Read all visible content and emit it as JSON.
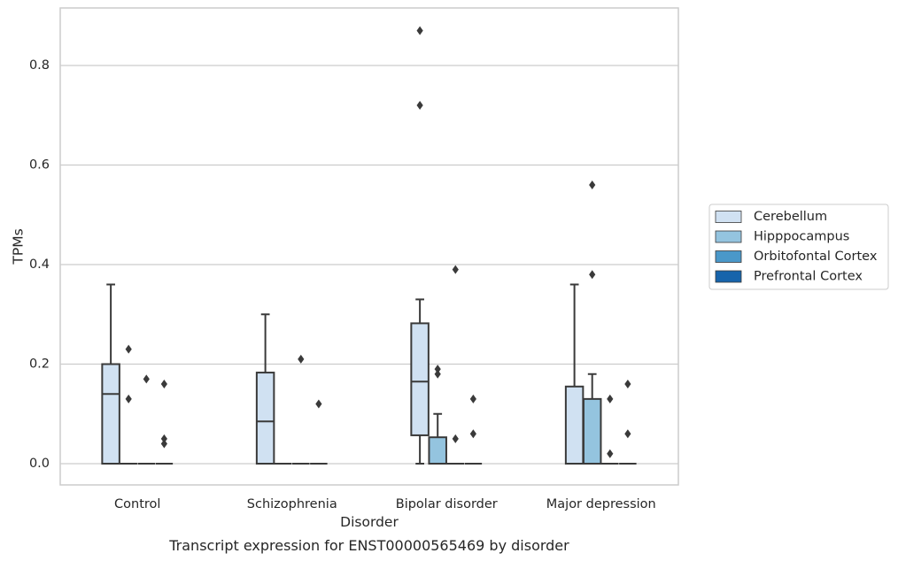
{
  "chart_data": {
    "type": "box",
    "caption": "Transcript expression for ENST00000565469 by disorder",
    "xlabel": "Disorder",
    "ylabel": "TPMs",
    "ylim": [
      -0.043,
      0.915
    ],
    "yticks": [
      0.0,
      0.2,
      0.4,
      0.6,
      0.8
    ],
    "ytick_labels": [
      "0.0",
      "0.2",
      "0.4",
      "0.6",
      "0.8"
    ],
    "grid": "horizontal",
    "legend_position": "right",
    "categories": [
      "Control",
      "Schizophrenia",
      "Bipolar disorder",
      "Major depression"
    ],
    "series": [
      {
        "name": "Cerebellum",
        "color": "#d0e1f2",
        "boxes": [
          {
            "q1": 0.0,
            "median": 0.14,
            "q3": 0.2,
            "whisker_low": 0.0,
            "whisker_high": 0.36,
            "outliers": []
          },
          {
            "q1": 0.0,
            "median": 0.085,
            "q3": 0.183,
            "whisker_low": 0.0,
            "whisker_high": 0.3,
            "outliers": []
          },
          {
            "q1": 0.057,
            "median": 0.165,
            "q3": 0.282,
            "whisker_low": 0.0,
            "whisker_high": 0.33,
            "outliers": [
              0.72,
              0.87
            ]
          },
          {
            "q1": 0.0,
            "median": 0.0,
            "q3": 0.155,
            "whisker_low": 0.0,
            "whisker_high": 0.36,
            "outliers": []
          }
        ]
      },
      {
        "name": "Hipppocampus",
        "color": "#94c4df",
        "boxes": [
          {
            "q1": 0.0,
            "median": 0.0,
            "q3": 0.0,
            "whisker_low": 0.0,
            "whisker_high": 0.0,
            "outliers": [
              0.13,
              0.23
            ]
          },
          {
            "q1": 0.0,
            "median": 0.0,
            "q3": 0.0,
            "whisker_low": 0.0,
            "whisker_high": 0.0,
            "outliers": []
          },
          {
            "q1": 0.0,
            "median": 0.0,
            "q3": 0.053,
            "whisker_low": 0.0,
            "whisker_high": 0.1,
            "outliers": [
              0.18,
              0.19
            ]
          },
          {
            "q1": 0.0,
            "median": 0.0,
            "q3": 0.13,
            "whisker_low": 0.0,
            "whisker_high": 0.18,
            "outliers": [
              0.38,
              0.56
            ]
          }
        ]
      },
      {
        "name": "Orbitofontal Cortex",
        "color": "#4a98c9",
        "boxes": [
          {
            "q1": 0.0,
            "median": 0.0,
            "q3": 0.0,
            "whisker_low": 0.0,
            "whisker_high": 0.0,
            "outliers": [
              0.17
            ]
          },
          {
            "q1": 0.0,
            "median": 0.0,
            "q3": 0.0,
            "whisker_low": 0.0,
            "whisker_high": 0.0,
            "outliers": [
              0.21
            ]
          },
          {
            "q1": 0.0,
            "median": 0.0,
            "q3": 0.0,
            "whisker_low": 0.0,
            "whisker_high": 0.0,
            "outliers": [
              0.05,
              0.39
            ]
          },
          {
            "q1": 0.0,
            "median": 0.0,
            "q3": 0.0,
            "whisker_low": 0.0,
            "whisker_high": 0.0,
            "outliers": [
              0.02,
              0.13
            ]
          }
        ]
      },
      {
        "name": "Prefrontal Cortex",
        "color": "#1764ab",
        "boxes": [
          {
            "q1": 0.0,
            "median": 0.0,
            "q3": 0.0,
            "whisker_low": 0.0,
            "whisker_high": 0.0,
            "outliers": [
              0.04,
              0.05,
              0.16
            ]
          },
          {
            "q1": 0.0,
            "median": 0.0,
            "q3": 0.0,
            "whisker_low": 0.0,
            "whisker_high": 0.0,
            "outliers": [
              0.12
            ]
          },
          {
            "q1": 0.0,
            "median": 0.0,
            "q3": 0.0,
            "whisker_low": 0.0,
            "whisker_high": 0.0,
            "outliers": [
              0.06,
              0.13
            ]
          },
          {
            "q1": 0.0,
            "median": 0.0,
            "q3": 0.0,
            "whisker_low": 0.0,
            "whisker_high": 0.0,
            "outliers": [
              0.06,
              0.16
            ]
          }
        ]
      }
    ]
  }
}
